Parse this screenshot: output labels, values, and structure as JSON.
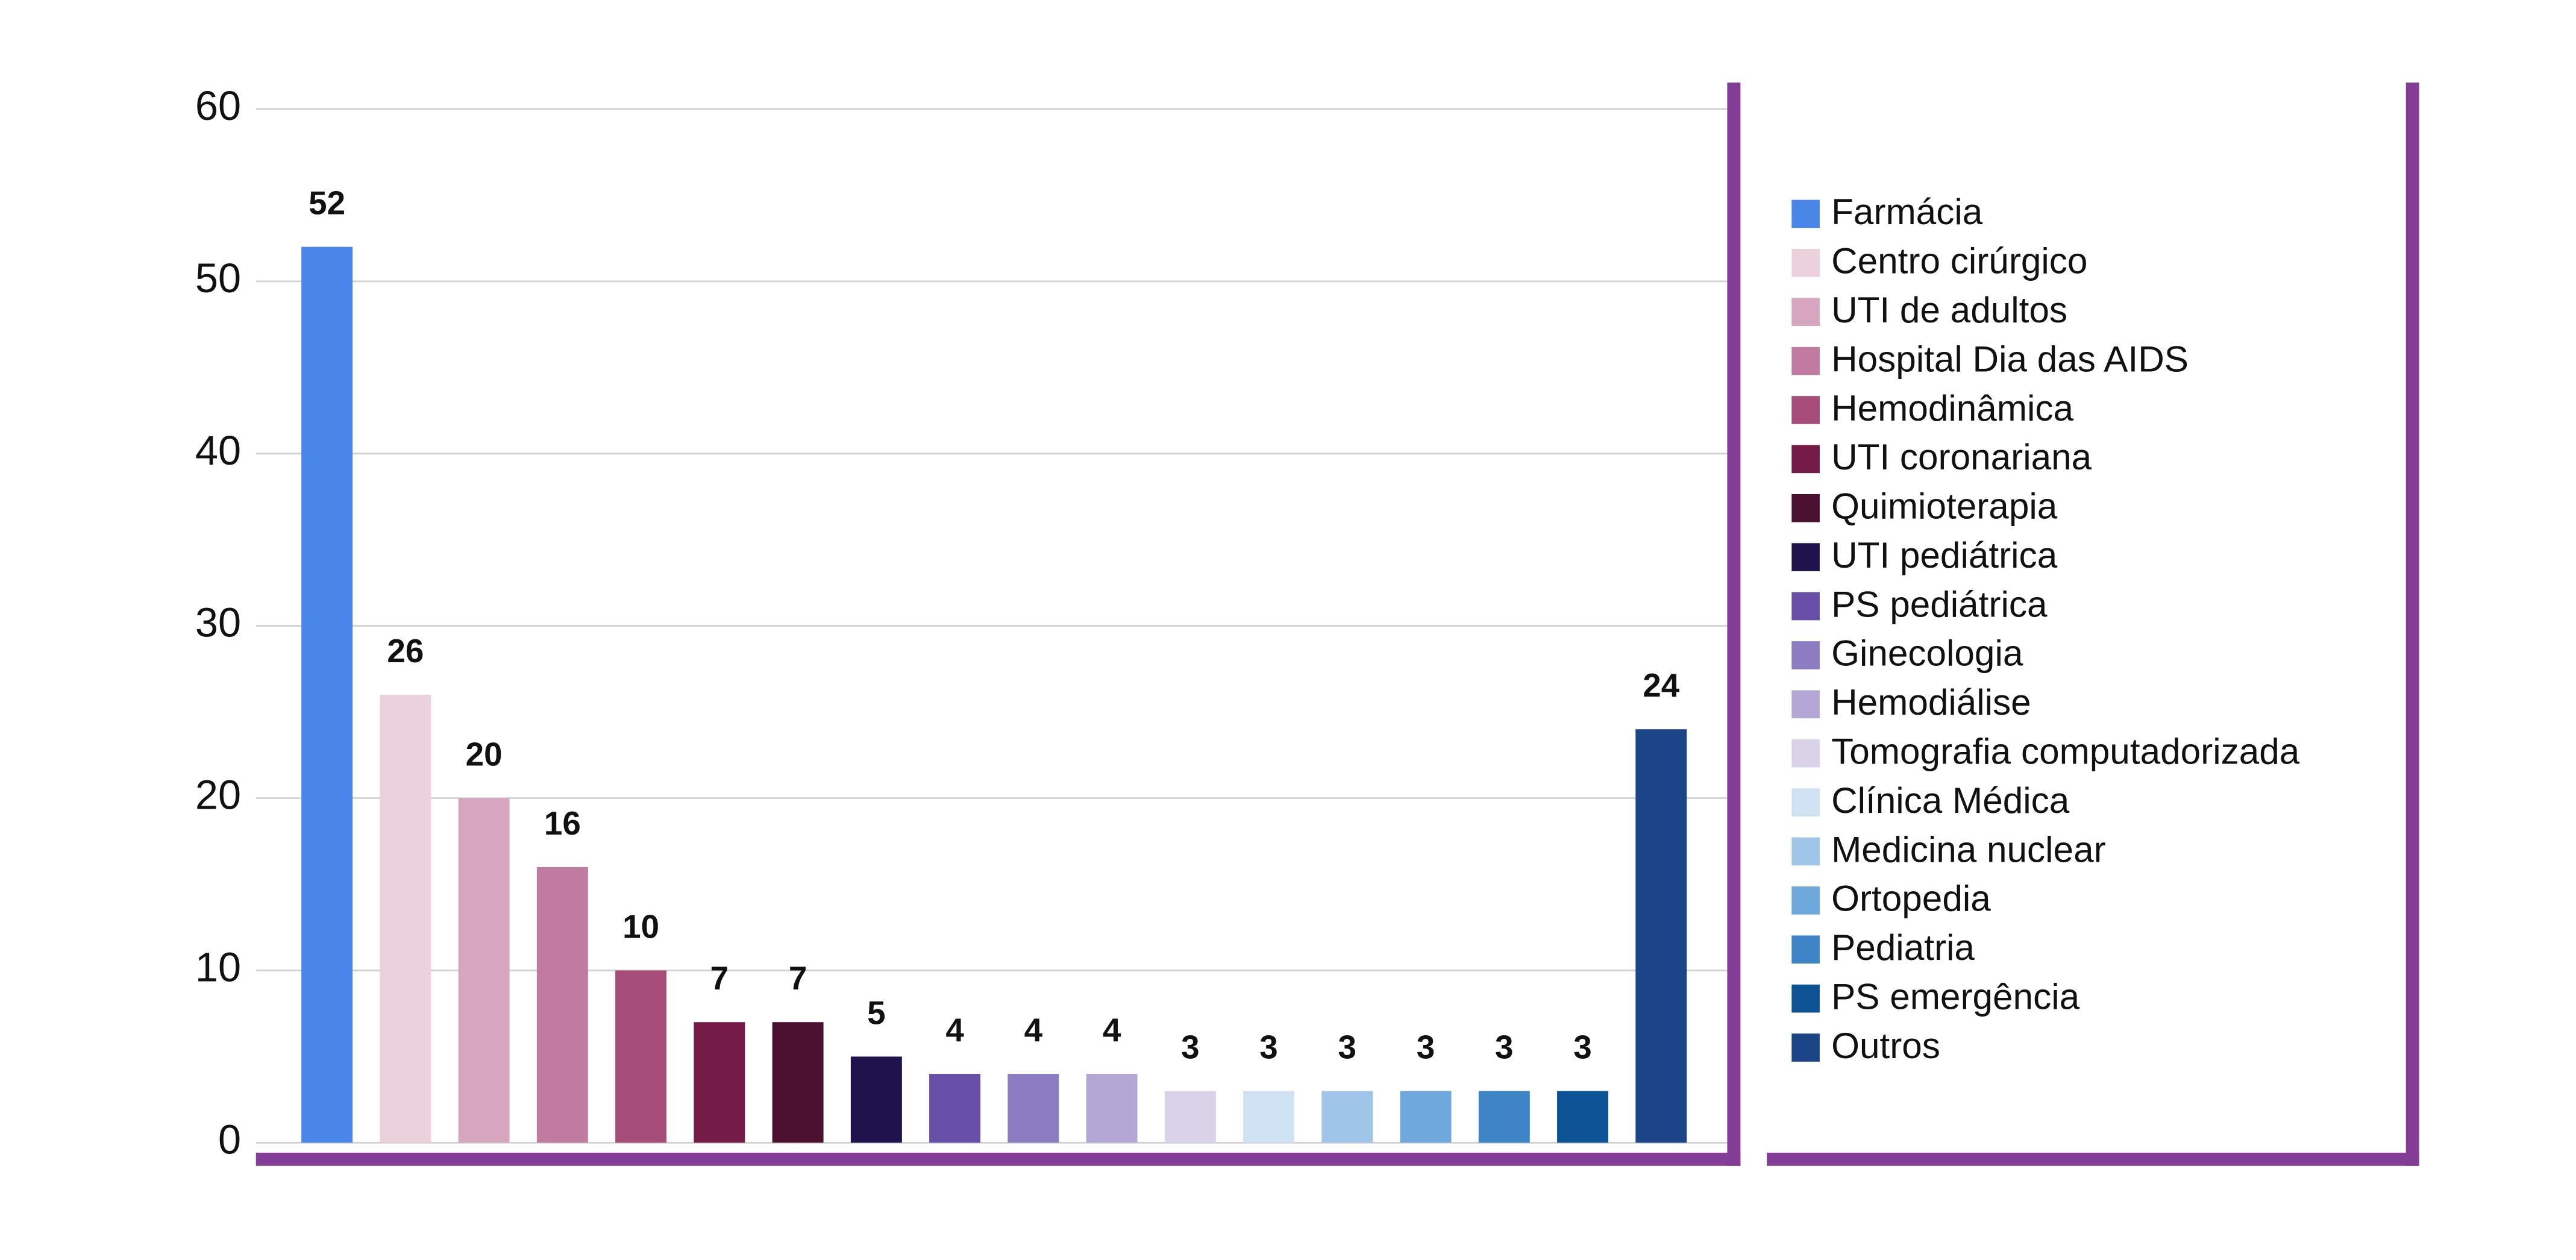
{
  "chart_data": {
    "type": "bar",
    "categories": [
      "Farmácia",
      "Centro cirúrgico",
      "UTI de adultos",
      "Hospital Dia das AIDS",
      "Hemodinâmica",
      "UTI coronariana",
      "Quimioterapia",
      "UTI pediátrica",
      "PS pediátrica",
      "Ginecologia",
      "Hemodiálise",
      "Tomografia computadorizada",
      "Clínica Médica",
      "Medicina nuclear",
      "Ortopedia",
      "Pediatria",
      "PS emergência",
      "Outros"
    ],
    "values": [
      52,
      26,
      20,
      16,
      10,
      7,
      7,
      5,
      4,
      4,
      4,
      3,
      3,
      3,
      3,
      3,
      3,
      24
    ],
    "colors": [
      "#4a86e8",
      "#ead1dc",
      "#d5a6bd",
      "#c27ba0",
      "#a64d79",
      "#741b47",
      "#4c1130",
      "#20124d",
      "#674ea7",
      "#8e7cc3",
      "#b4a7d6",
      "#d9d2e9",
      "#cfe2f3",
      "#9fc5e8",
      "#6fa8dc",
      "#3d85c6",
      "#0b5394",
      "#1c4587"
    ],
    "ylim": [
      0,
      60
    ],
    "yticks": [
      0,
      10,
      20,
      30,
      40,
      50,
      60
    ],
    "grid": true
  }
}
